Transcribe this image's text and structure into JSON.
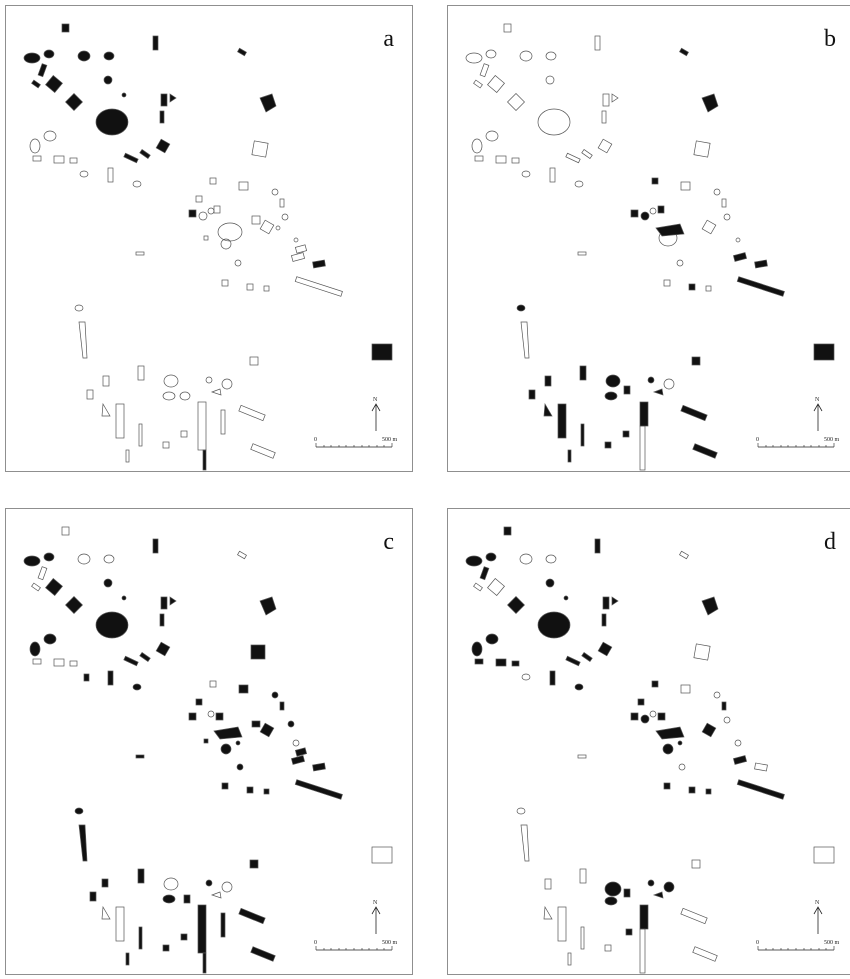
{
  "panels": [
    {
      "id": "a",
      "label": "a"
    },
    {
      "id": "b",
      "label": "b"
    },
    {
      "id": "c",
      "label": "c"
    },
    {
      "id": "d",
      "label": "d"
    }
  ],
  "scale_bar": {
    "start_label": "0",
    "end_label": "500 m"
  },
  "north_label": "N",
  "colors": {
    "filled": "#111111",
    "outline": "#555555",
    "frame": "#8f8f8f"
  }
}
